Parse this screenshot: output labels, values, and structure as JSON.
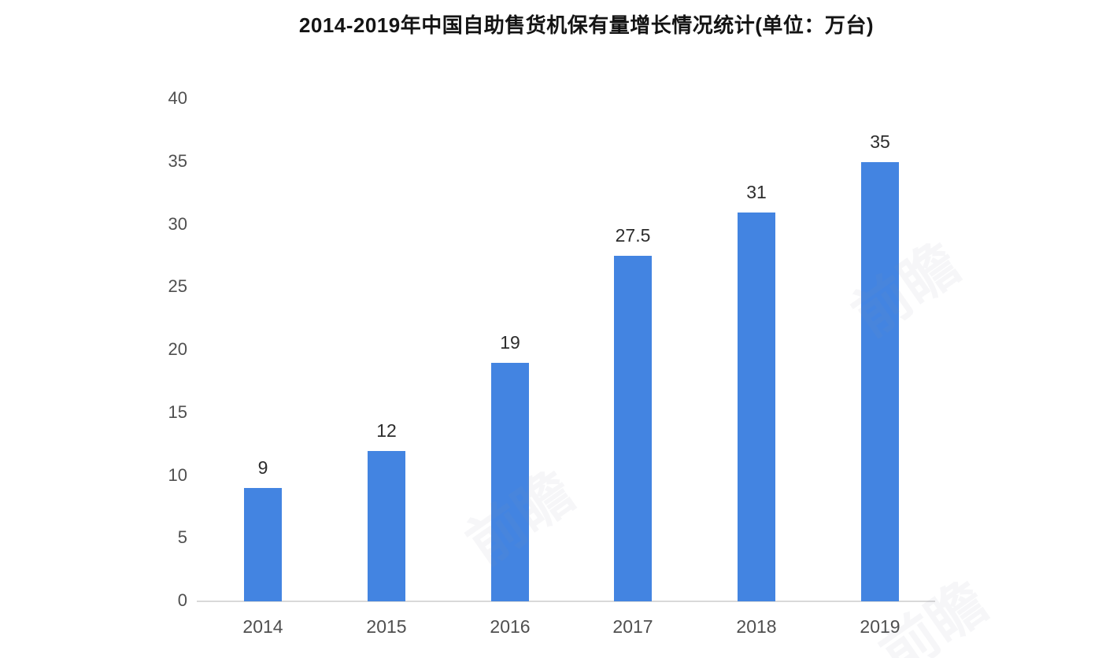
{
  "title": "2014-2019年中国自助售货机保有量增长情况统计(单位：万台)",
  "chart_data": {
    "type": "bar",
    "title": "2014-2019年中国自助售货机保有量增长情况统计(单位：万台)",
    "categories": [
      "2014",
      "2015",
      "2016",
      "2017",
      "2018",
      "2019"
    ],
    "values": [
      9,
      12,
      19,
      27.5,
      31,
      35
    ],
    "value_labels": [
      "9",
      "12",
      "19",
      "27.5",
      "31",
      "35"
    ],
    "xlabel": "",
    "ylabel": "",
    "ylim": [
      0,
      40
    ],
    "yticks": [
      0,
      5,
      10,
      15,
      20,
      25,
      30,
      35,
      40
    ],
    "grid": false,
    "legend": "none",
    "bar_color": "#4384e1",
    "value_label_color": "#2d2d2d",
    "tick_label_color": "#4f4f4f",
    "axis_line_color": "#d9d9d9",
    "background_color": "#ffffff",
    "unit": "万台"
  },
  "watermark": {
    "text": "前瞻",
    "color": "#8a93a6"
  }
}
